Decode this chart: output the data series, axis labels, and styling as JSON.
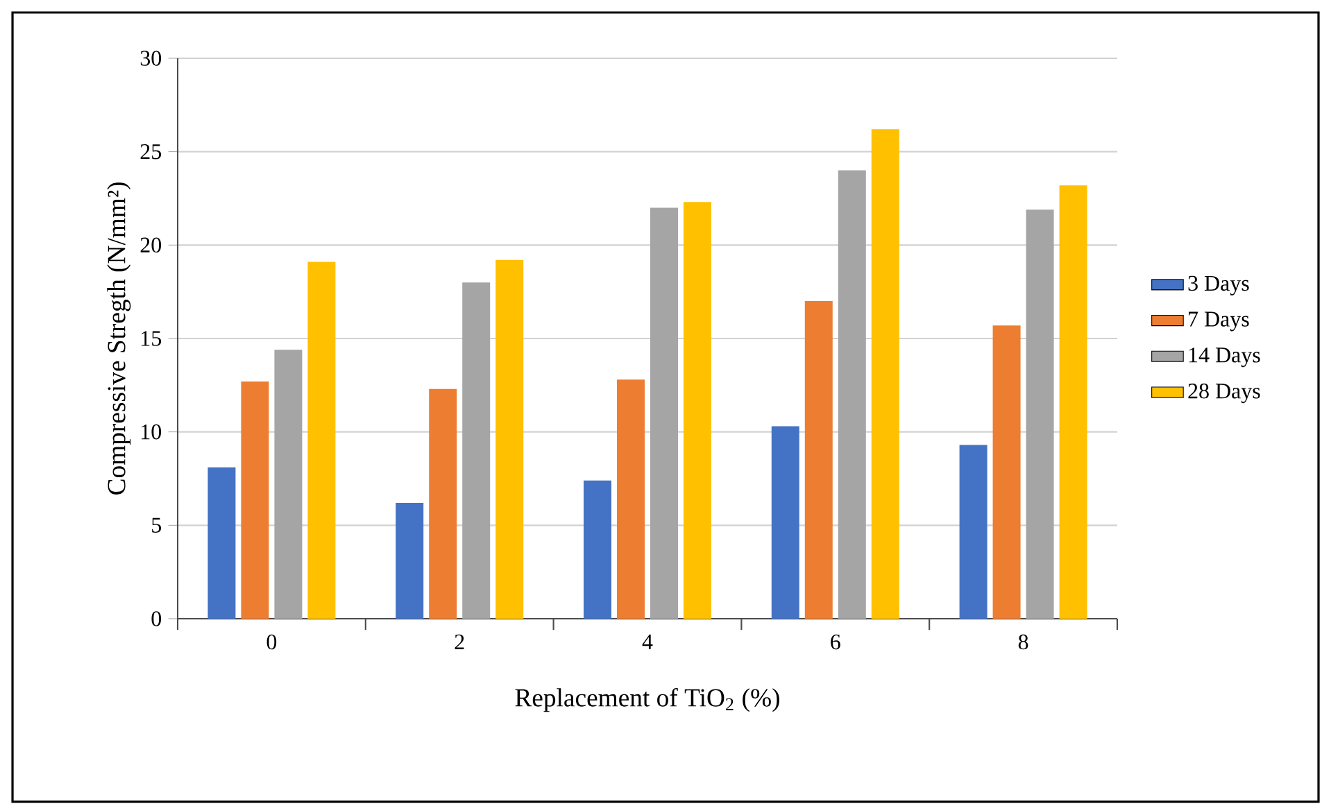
{
  "chart_data": {
    "type": "bar",
    "xlabel": "Replacement of TiO$_{2}$ (%)",
    "ylabel": "Compressive Stregth (N/mm²)",
    "categories": [
      "0",
      "2",
      "4",
      "6",
      "8"
    ],
    "series": [
      {
        "name": "3 Days",
        "color": "#4472c4",
        "values": [
          8.1,
          6.2,
          7.4,
          10.3,
          9.3
        ]
      },
      {
        "name": "7 Days",
        "color": "#ed7d31",
        "values": [
          12.7,
          12.3,
          12.8,
          17.0,
          15.7
        ]
      },
      {
        "name": "14 Days",
        "color": "#a5a5a5",
        "values": [
          14.4,
          18.0,
          22.0,
          24.0,
          21.9
        ]
      },
      {
        "name": "28 Days",
        "color": "#ffc000",
        "values": [
          19.1,
          19.2,
          22.3,
          26.2,
          23.2
        ]
      }
    ],
    "ylim": [
      0,
      30
    ],
    "yticks": [
      0,
      5,
      10,
      15,
      20,
      25,
      30
    ],
    "grid": "y",
    "legend": "right"
  }
}
